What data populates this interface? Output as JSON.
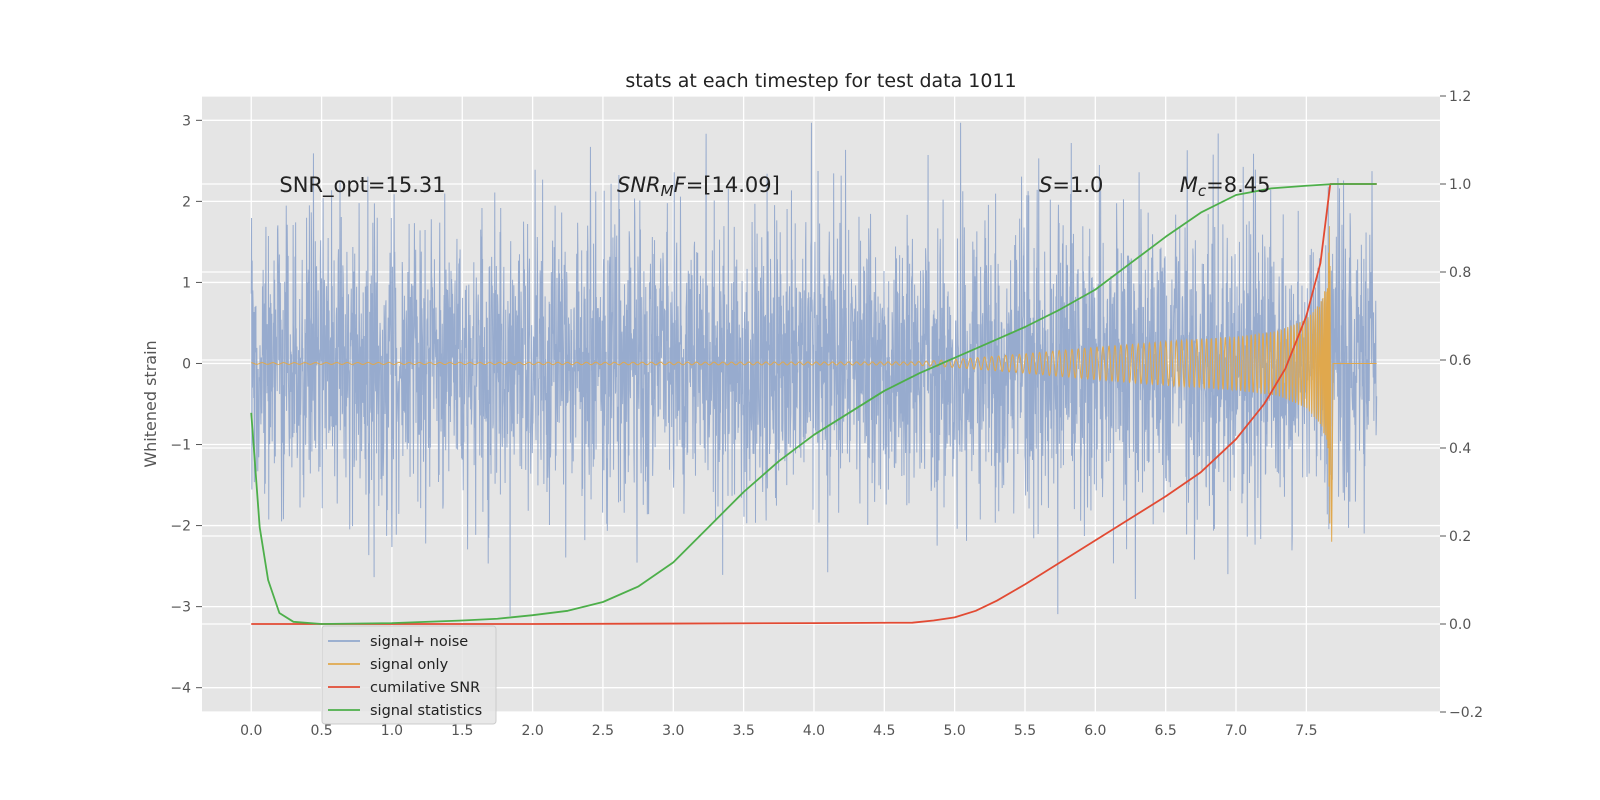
{
  "chart_data": {
    "type": "line",
    "title": "stats at each timestep for test data 1011",
    "xlabel": "",
    "ylabel": "Whitened strain",
    "y2label": "",
    "xlim": [
      -0.35,
      8.45
    ],
    "ylim": [
      -4.3,
      3.3
    ],
    "y2lim": [
      -0.2,
      1.2
    ],
    "x_ticks": [
      "0.0",
      "0.5",
      "1.0",
      "1.5",
      "2.0",
      "2.5",
      "3.0",
      "3.5",
      "4.0",
      "4.5",
      "5.0",
      "5.5",
      "6.0",
      "6.5",
      "7.0",
      "7.5"
    ],
    "y_ticks": [
      "−4",
      "−3",
      "−2",
      "−1",
      "0",
      "1",
      "2",
      "3"
    ],
    "y2_ticks": [
      "−0.2",
      "0.0",
      "0.2",
      "0.4",
      "0.6",
      "0.8",
      "1.0",
      "1.2"
    ],
    "grid": true,
    "legend_position": "lower-left",
    "annotations": [
      {
        "label": "SNR_opt=15.31",
        "x": 0.2,
        "y": 2.2
      },
      {
        "label": "SNR_MF=[14.09]",
        "x": 2.6,
        "y": 2.2
      },
      {
        "label": "S=1.0",
        "x": 5.6,
        "y": 2.2
      },
      {
        "label": "M_c=8.45",
        "x": 6.6,
        "y": 2.2
      }
    ],
    "series": [
      {
        "name": "signal+ noise",
        "axis": "left",
        "color": "#92a8cc",
        "description_x_range": [
          0.0,
          8.0
        ],
        "typical_band": [
          -1.0,
          1.0
        ],
        "peak_max": 2.97,
        "peak_min": -3.2
      },
      {
        "name": "signal only",
        "axis": "left",
        "color": "#e0a84d",
        "envelope_x": [
          0.0,
          4.7,
          5.0,
          5.5,
          6.0,
          6.5,
          7.0,
          7.3,
          7.5,
          7.6,
          7.65,
          7.66,
          7.67
        ],
        "envelope_amp": [
          0.01,
          0.02,
          0.05,
          0.12,
          0.2,
          0.27,
          0.33,
          0.4,
          0.55,
          0.75,
          1.0,
          1.5,
          2.2
        ]
      },
      {
        "name": "cumilative SNR",
        "axis": "right",
        "color": "#e24a33",
        "x": [
          0.0,
          1.0,
          2.0,
          3.0,
          4.0,
          4.7,
          4.85,
          5.0,
          5.15,
          5.3,
          5.5,
          5.75,
          6.0,
          6.25,
          6.5,
          6.75,
          7.0,
          7.2,
          7.35,
          7.5,
          7.6,
          7.67,
          7.7,
          8.0
        ],
        "y": [
          0.0,
          0.0,
          0.0,
          0.001,
          0.002,
          0.003,
          0.008,
          0.015,
          0.03,
          0.053,
          0.09,
          0.14,
          0.19,
          0.24,
          0.29,
          0.345,
          0.42,
          0.5,
          0.58,
          0.7,
          0.82,
          1.0,
          1.0,
          1.0
        ]
      },
      {
        "name": "signal statistics",
        "axis": "right",
        "color": "#4daf4a",
        "x": [
          0.0,
          0.06,
          0.12,
          0.2,
          0.3,
          0.5,
          1.0,
          1.5,
          1.75,
          2.0,
          2.25,
          2.5,
          2.75,
          3.0,
          3.25,
          3.5,
          3.75,
          4.0,
          4.25,
          4.5,
          4.75,
          5.0,
          5.25,
          5.5,
          5.75,
          6.0,
          6.25,
          6.5,
          6.75,
          7.0,
          7.25,
          7.5,
          7.6,
          7.7,
          8.0
        ],
        "y": [
          0.48,
          0.22,
          0.1,
          0.025,
          0.005,
          0.0,
          0.002,
          0.008,
          0.012,
          0.02,
          0.03,
          0.05,
          0.085,
          0.14,
          0.22,
          0.3,
          0.37,
          0.43,
          0.48,
          0.53,
          0.57,
          0.605,
          0.64,
          0.675,
          0.715,
          0.76,
          0.82,
          0.88,
          0.935,
          0.975,
          0.99,
          0.996,
          0.998,
          1.0,
          1.0
        ]
      }
    ]
  }
}
